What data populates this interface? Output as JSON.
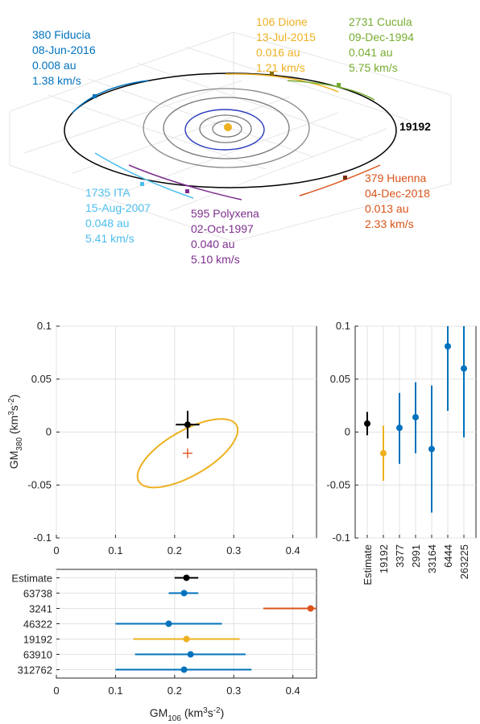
{
  "orbit_figure": {
    "main_asteroid": "19192",
    "encounters": [
      {
        "name": "380 Fiducia",
        "date": "08-Jun-2016",
        "distance": "0.008 au",
        "velocity": "1.38 km/s",
        "color": "#0072BD"
      },
      {
        "name": "106 Dione",
        "date": "13-Jul-2015",
        "distance": "0.016 au",
        "velocity": "1.21 km/s",
        "color": "#EDB120"
      },
      {
        "name": "2731 Cucula",
        "date": "09-Dec-1994",
        "distance": "0.041 au",
        "velocity": "5.75 km/s",
        "color": "#77AC30"
      },
      {
        "name": "379 Huenna",
        "date": "04-Dec-2018",
        "distance": "0.013 au",
        "velocity": "2.33 km/s",
        "color": "#D95319"
      },
      {
        "name": "1735 ITA",
        "date": "15-Aug-2007",
        "distance": "0.048 au",
        "velocity": "5.41 km/s",
        "color": "#4DBEEE"
      },
      {
        "name": "595 Polyxena",
        "date": "02-Oct-1997",
        "distance": "0.040 au",
        "velocity": "5.10 km/s",
        "color": "#7E2F8E"
      }
    ]
  },
  "chart_data": [
    {
      "type": "scatter",
      "id": "joint",
      "ylabel_main": "GM",
      "ylabel_sub": "380",
      "ylabel_units": "(km",
      "ylabel_exp": "3",
      "ylabel_s": "s",
      "ylabel_sexp": "-2",
      "ylabel_close": ")",
      "xlim": [
        0,
        0.44
      ],
      "ylim": [
        -0.1,
        0.1
      ],
      "xticks": [
        "0",
        "0.1",
        "0.2",
        "0.3",
        "0.4"
      ],
      "yticks": [
        "-0.1",
        "-0.05",
        "0",
        "0.05",
        "0.1"
      ],
      "grid": true,
      "estimate": {
        "x": 0.222,
        "y": 0.007,
        "xerr": 0.02,
        "yerr": 0.013,
        "color": "#000000"
      },
      "cross": {
        "x": 0.222,
        "y": -0.02,
        "color": "#D95319"
      },
      "ellipse": {
        "cx": 0.222,
        "cy": -0.02,
        "color": "#EDB120"
      }
    },
    {
      "type": "errorbar",
      "id": "gm380",
      "categories": [
        "Estimate",
        "19192",
        "3377",
        "2991",
        "33164",
        "6444",
        "263225"
      ],
      "values": [
        0.008,
        -0.02,
        0.004,
        0.014,
        -0.016,
        0.081,
        0.06
      ],
      "lower": [
        -0.003,
        -0.046,
        -0.03,
        -0.02,
        -0.076,
        0.02,
        -0.005
      ],
      "upper": [
        0.019,
        0.006,
        0.037,
        0.047,
        0.044,
        0.1,
        0.1
      ],
      "colors": [
        "#000000",
        "#EDB120",
        "#0072BD",
        "#0072BD",
        "#0072BD",
        "#0072BD",
        "#0072BD"
      ],
      "ylim": [
        -0.1,
        0.1
      ],
      "yticks": [
        "-0.1",
        "-0.05",
        "0",
        "0.05",
        "0.1"
      ]
    },
    {
      "type": "errorbar",
      "id": "gm106",
      "categories": [
        "Estimate",
        "63738",
        "3241",
        "46322",
        "19192",
        "63910",
        "312762"
      ],
      "values": [
        0.22,
        0.216,
        0.43,
        0.19,
        0.22,
        0.227,
        0.216
      ],
      "lower": [
        0.2,
        0.19,
        0.35,
        0.1,
        0.13,
        0.133,
        0.1
      ],
      "upper": [
        0.24,
        0.24,
        0.44,
        0.28,
        0.31,
        0.32,
        0.33
      ],
      "colors": [
        "#000000",
        "#0072BD",
        "#D95319",
        "#0072BD",
        "#EDB120",
        "#0072BD",
        "#0072BD"
      ],
      "xlim": [
        0,
        0.44
      ],
      "xticks": [
        "0",
        "0.1",
        "0.2",
        "0.3",
        "0.4"
      ],
      "xlabel_main": "GM",
      "xlabel_sub": "106",
      "xlabel_units": "(km",
      "xlabel_exp": "3",
      "xlabel_s": "s",
      "xlabel_sexp": "-2",
      "xlabel_close": ")"
    }
  ]
}
